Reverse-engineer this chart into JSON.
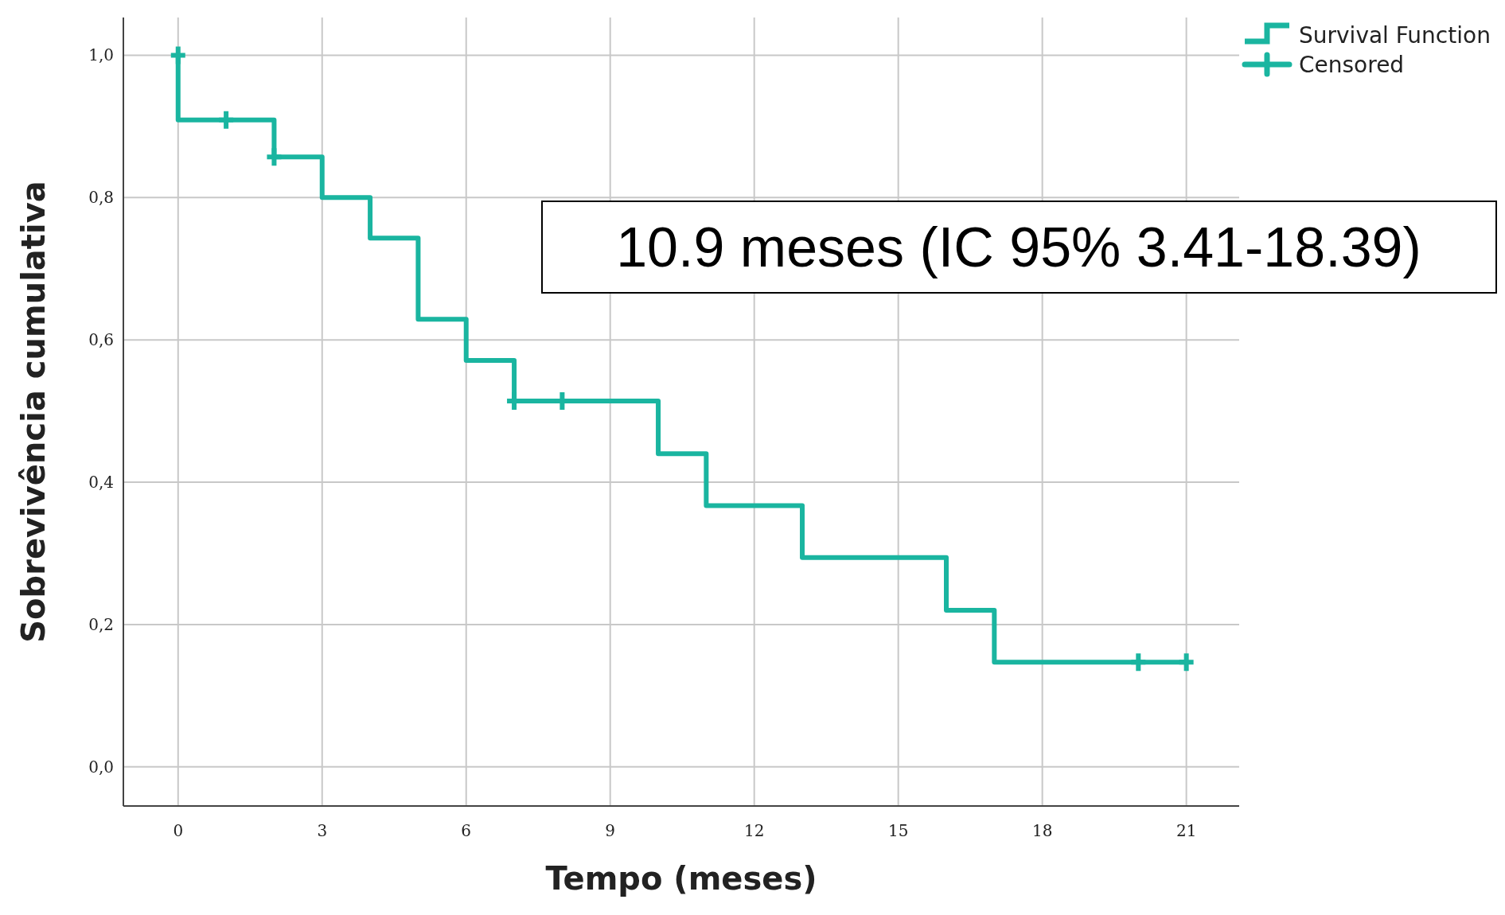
{
  "chart_data": {
    "type": "step",
    "xlabel": "Tempo (meses)",
    "ylabel": "Sobrevivência cumulativa",
    "xlim": [
      -1.14,
      22.1
    ],
    "ylim": [
      -0.055,
      1.053
    ],
    "xticks": [
      0,
      3,
      6,
      9,
      12,
      15,
      18,
      21
    ],
    "yticks": [
      {
        "value": 0,
        "label": "0,0"
      },
      {
        "value": 0.2,
        "label": "0,2"
      },
      {
        "value": 0.4,
        "label": "0,4"
      },
      {
        "value": 0.6,
        "label": "0,6"
      },
      {
        "value": 0.8,
        "label": "0,8"
      },
      {
        "value": 1,
        "label": "1,0"
      }
    ],
    "grid": true,
    "legend": "top right",
    "series": [
      {
        "name": "Survival Function",
        "color": "#1ab5a0",
        "x": [
          0,
          0,
          2,
          3,
          4,
          5,
          6,
          7,
          10,
          11,
          13,
          16,
          17,
          21
        ],
        "values": [
          1.0,
          0.909,
          0.857,
          0.8,
          0.743,
          0.629,
          0.571,
          0.514,
          0.44,
          0.367,
          0.294,
          0.22,
          0.147,
          0.147
        ]
      },
      {
        "name": "Censored",
        "type": "scatter",
        "marker": "cross",
        "color": "#1ab5a0",
        "x": [
          0,
          1,
          2,
          7,
          8,
          20,
          21
        ],
        "values": [
          1.0,
          0.909,
          0.857,
          0.514,
          0.514,
          0.147,
          0.147
        ]
      }
    ],
    "annotations": [
      "10.9 meses (IC 95% 3.41-18.39)"
    ]
  }
}
